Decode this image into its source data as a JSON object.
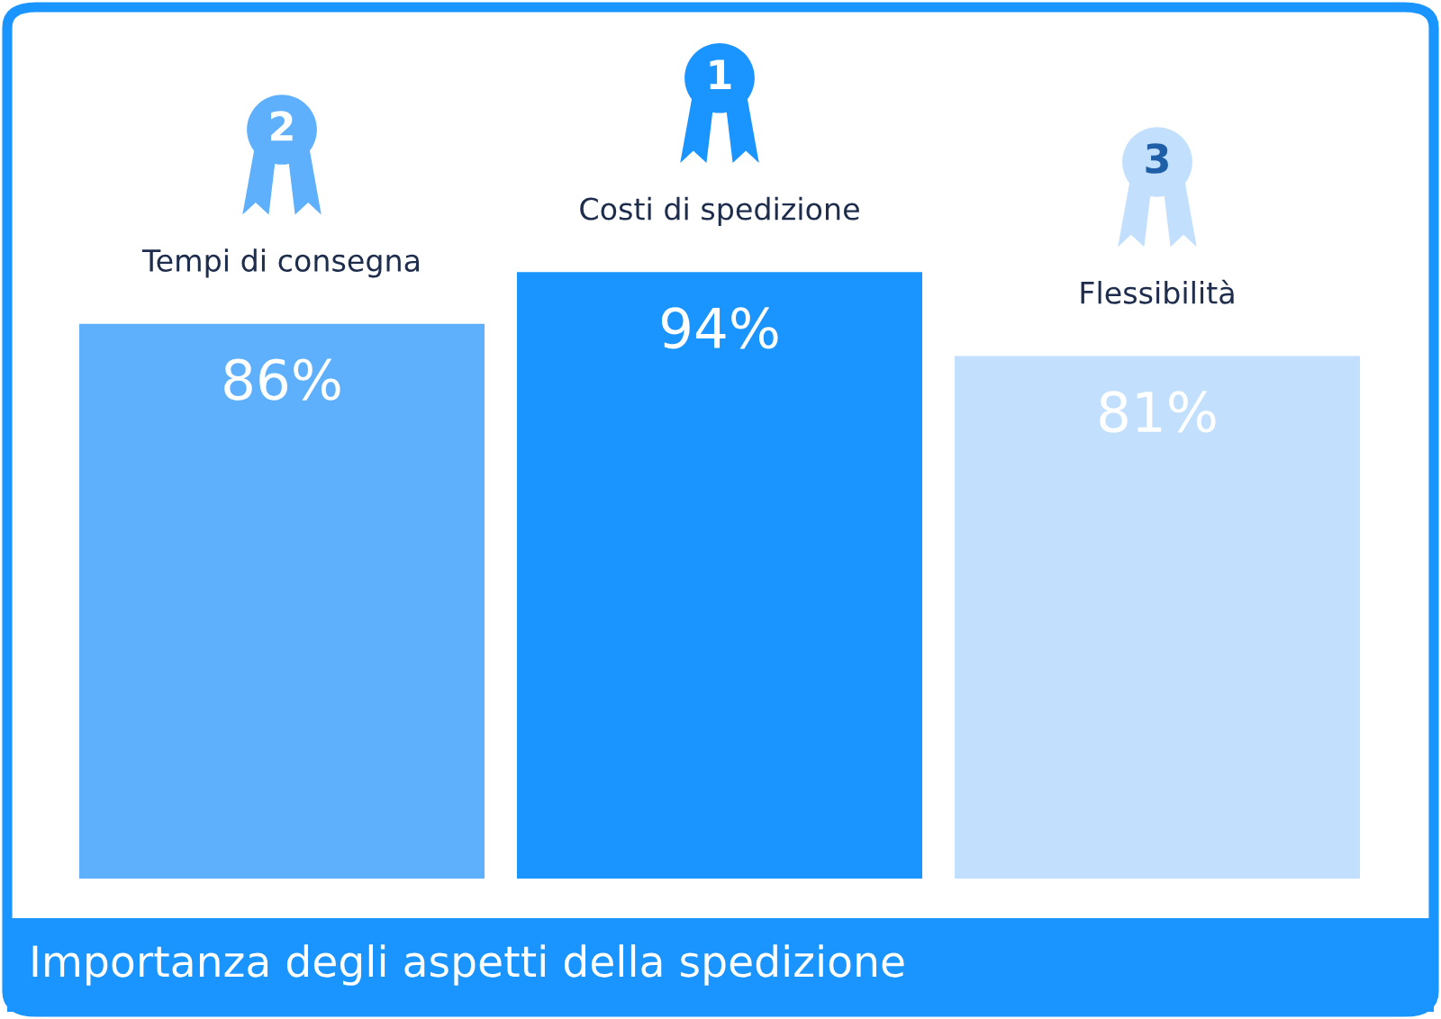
{
  "chart_data": {
    "type": "bar",
    "title": "Importanza degli aspetti della spedizione",
    "categories": [
      "Tempi di consegna",
      "Costi di spedizione",
      "Flessibilità"
    ],
    "values": [
      86,
      94,
      81
    ],
    "colors": [
      "#5eb0fc",
      "#1a94ff",
      "#c2e0fd"
    ],
    "value_labels": [
      "86%",
      "94%",
      "81%"
    ],
    "annotations": [
      "2",
      "1",
      "3"
    ],
    "legend": false
  }
}
